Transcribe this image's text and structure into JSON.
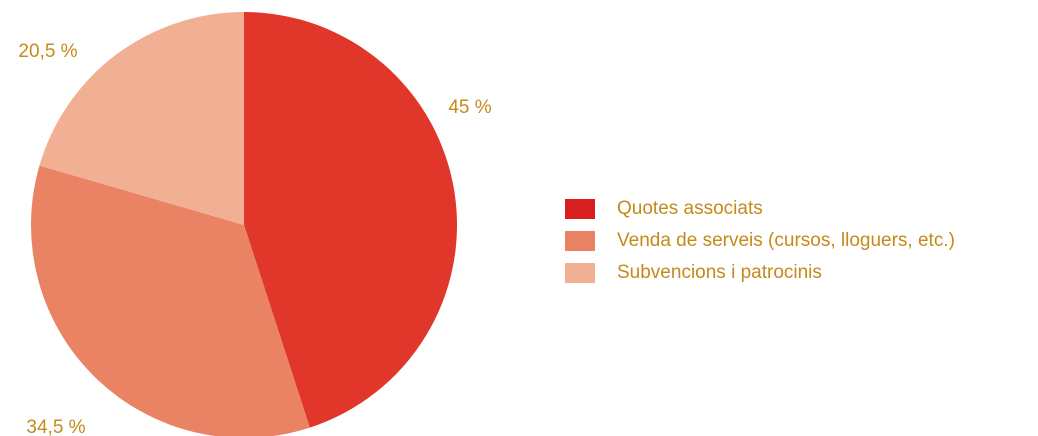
{
  "chart_data": {
    "type": "pie",
    "title": "",
    "text_color": "#c48a1a",
    "slices": [
      {
        "label": "Quotes associats",
        "value": 45,
        "value_label": "45 %",
        "color": "#e0372a",
        "legend_color": "#d81e1e"
      },
      {
        "label": "Venda de serveis (cursos, lloguers, etc.)",
        "value": 34.5,
        "value_label": "34,5 %",
        "color": "#e98364",
        "legend_color": "#e98364"
      },
      {
        "label": "Subvencions i patrocinis",
        "value": 20.5,
        "value_label": "20,5 %",
        "color": "#f1af94",
        "legend_color": "#f1af94"
      }
    ],
    "start": "12 o'clock",
    "direction": "clockwise",
    "legend_position": "right"
  }
}
